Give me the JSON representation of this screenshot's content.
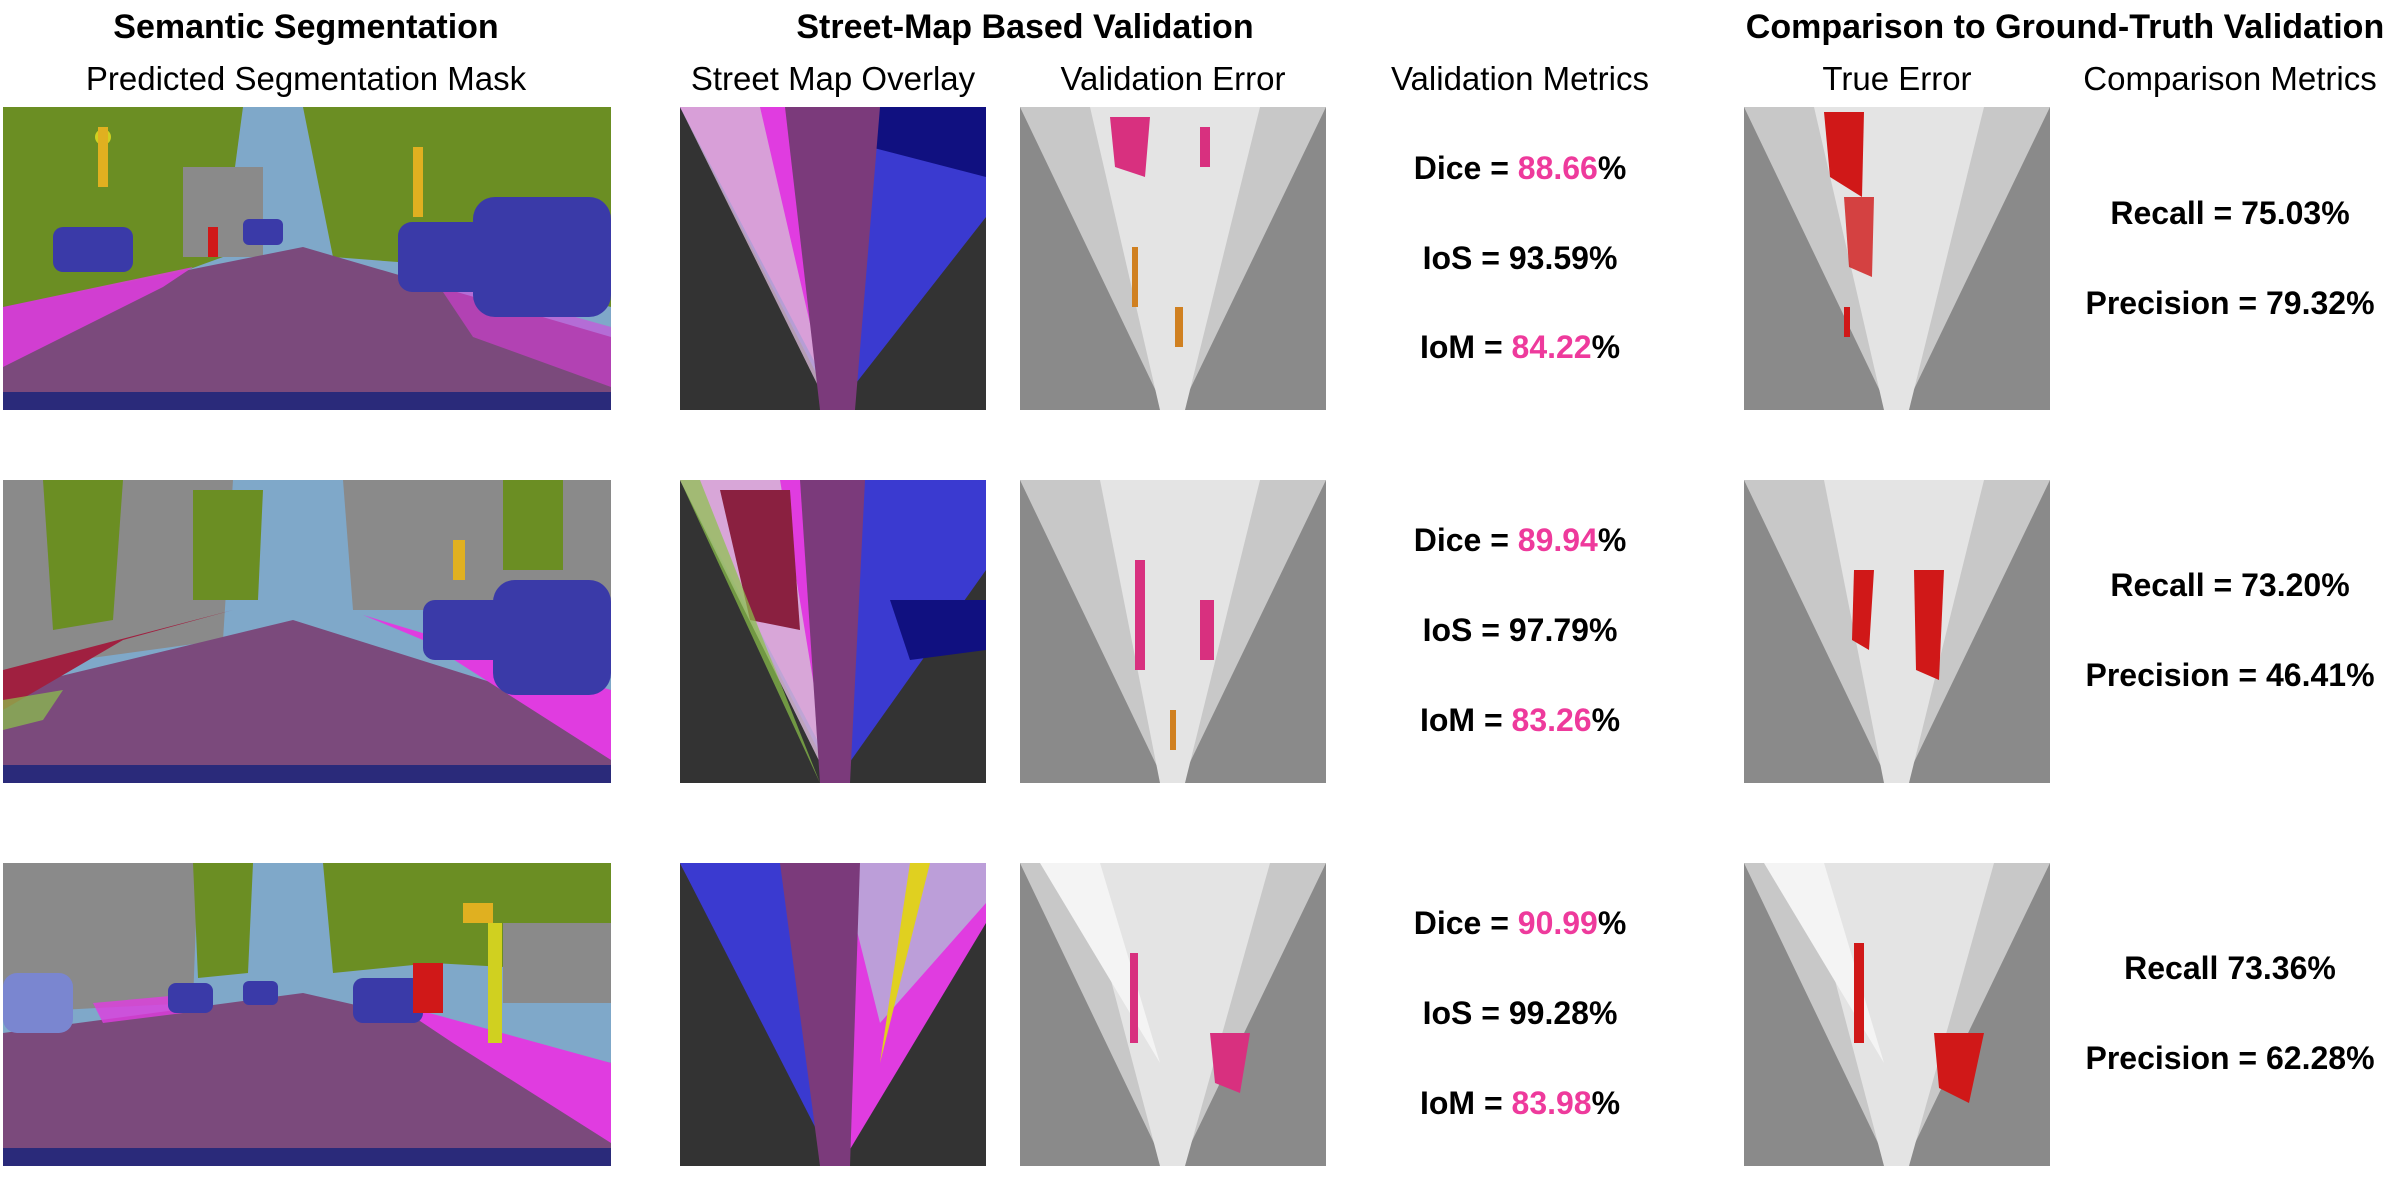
{
  "sections": {
    "segmentation": "Semantic Segmentation",
    "street_map": "Street-Map Based Validation",
    "comparison": "Comparison to Ground-Truth Validation"
  },
  "columns": {
    "predicted_mask": "Predicted Segmentation Mask",
    "street_map_overlay": "Street Map Overlay",
    "validation_error": "Validation Error",
    "validation_metrics": "Validation Metrics",
    "true_error": "True Error",
    "comparison_metrics": "Comparison Metrics"
  },
  "colors": {
    "road": "#7b4a7c",
    "sidewalk": "#e03ce0",
    "car": "#3a3aa8",
    "vegetation": "#6b8e23",
    "sky": "#7fa8c9",
    "highlight": "#ee3a9c",
    "true_error": "#d01818",
    "validation_error_magenta": "#d8307f"
  },
  "rows": [
    {
      "validation": {
        "dice_label": "Dice = ",
        "dice_value": "88.66",
        "dice_unit": "%",
        "ios": "IoS = 93.59%",
        "iom_label": "IoM = ",
        "iom_value": "84.22",
        "iom_unit": "%"
      },
      "comparison": {
        "recall": "Recall = 75.03%",
        "precision": "Precision = 79.32%"
      }
    },
    {
      "validation": {
        "dice_label": "Dice = ",
        "dice_value": "89.94",
        "dice_unit": "%",
        "ios": "IoS = 97.79%",
        "iom_label": "IoM = ",
        "iom_value": "83.26",
        "iom_unit": "%"
      },
      "comparison": {
        "recall": "Recall = 73.20%",
        "precision": "Precision = 46.41%"
      }
    },
    {
      "validation": {
        "dice_label": "Dice = ",
        "dice_value": "90.99",
        "dice_unit": "%",
        "ios": "IoS = 99.28%",
        "iom_label": "IoM = ",
        "iom_value": "83.98",
        "iom_unit": "%"
      },
      "comparison": {
        "recall": "Recall 73.36%",
        "precision": "Precision = 62.28%"
      }
    }
  ]
}
